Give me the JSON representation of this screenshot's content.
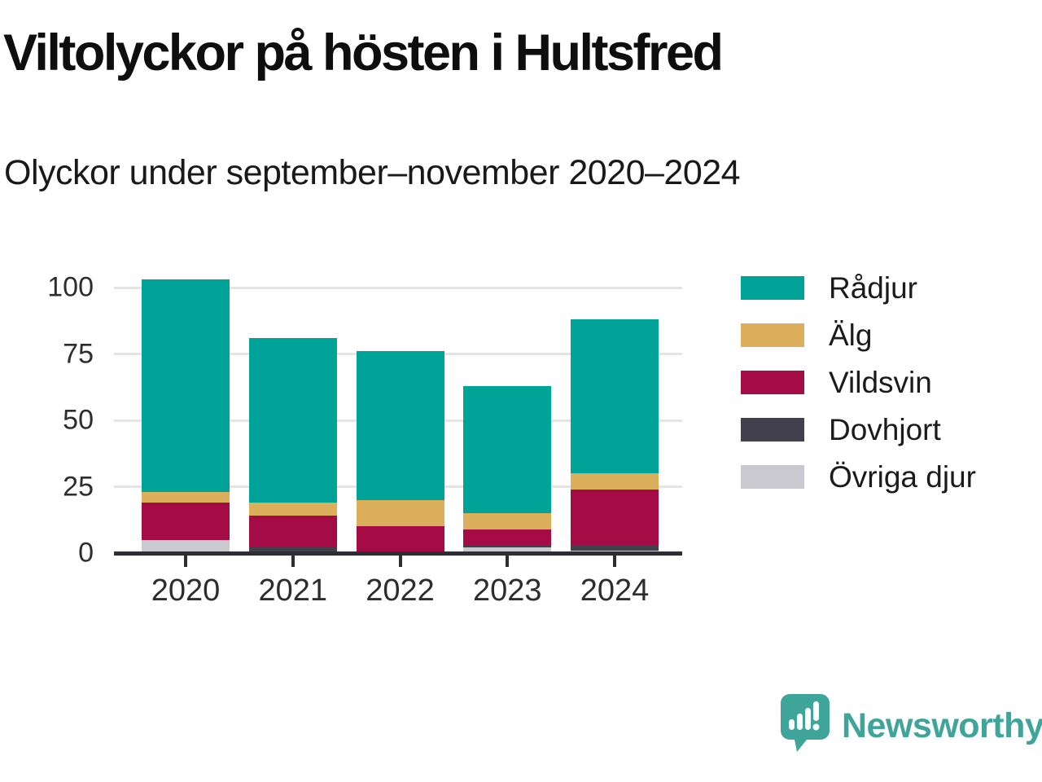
{
  "header": {
    "title": "Viltolyckor på hösten i Hultsfred",
    "subtitle": "Olyckor under september–november 2020–2024"
  },
  "chart_data": {
    "type": "bar",
    "stacked": true,
    "title": "Viltolyckor på hösten i Hultsfred",
    "subtitle": "Olyckor under september–november 2020–2024",
    "categories": [
      "2020",
      "2021",
      "2022",
      "2023",
      "2024"
    ],
    "series": [
      {
        "name": "Rådjur",
        "color": "#00a398",
        "values": [
          80,
          62,
          56,
          48,
          58
        ]
      },
      {
        "name": "Älg",
        "color": "#dcaf5c",
        "values": [
          4,
          5,
          10,
          6,
          6
        ]
      },
      {
        "name": "Vildsvin",
        "color": "#a50b45",
        "values": [
          14,
          12,
          10,
          6,
          21
        ]
      },
      {
        "name": "Dovhjort",
        "color": "#41404c",
        "values": [
          0,
          2,
          0,
          1,
          2
        ]
      },
      {
        "name": "Övriga djur",
        "color": "#cac9d0",
        "values": [
          5,
          0,
          0,
          2,
          1
        ]
      }
    ],
    "stack_bottom_to_top": [
      "Övriga djur",
      "Dovhjort",
      "Vildsvin",
      "Älg",
      "Rådjur"
    ],
    "totals": [
      103,
      81,
      76,
      63,
      88
    ],
    "yticks": [
      0,
      25,
      50,
      75,
      100
    ],
    "ylim": [
      0,
      105
    ],
    "xlabel": "",
    "ylabel": "",
    "grid": true,
    "legend_position": "right"
  },
  "footer": {
    "brand": "Newsworthy"
  }
}
